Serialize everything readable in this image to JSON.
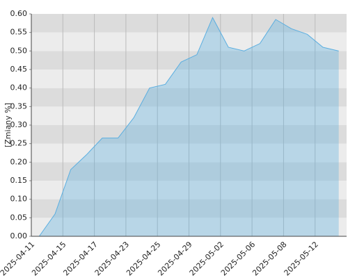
{
  "chart_data": {
    "type": "area",
    "ylabel": "[Zmiany %]",
    "categories": [
      "2025-04-11",
      null,
      "2025-04-15",
      null,
      "2025-04-17",
      null,
      "2025-04-23",
      null,
      "2025-04-25",
      null,
      "2025-04-29",
      null,
      "2025-05-02",
      null,
      "2025-05-06",
      null,
      "2025-05-08",
      null,
      "2025-05-12",
      null
    ],
    "values": [
      0,
      0.06,
      0.18,
      0.22,
      0.265,
      0.265,
      0.32,
      0.4,
      0.41,
      0.47,
      0.49,
      0.59,
      0.51,
      0.5,
      0.52,
      0.585,
      0.56,
      0.545,
      0.51,
      0.5
    ],
    "color": "#5aaee0",
    "ylim": [
      0,
      0.6
    ],
    "yticks": [
      {
        "value": 0,
        "label": "0.00"
      },
      {
        "value": 0.05,
        "label": "0.05"
      },
      {
        "value": 0.1,
        "label": "0.10"
      },
      {
        "value": 0.15,
        "label": "0.15"
      },
      {
        "value": 0.2,
        "label": "0.20"
      },
      {
        "value": 0.25,
        "label": "0.25"
      },
      {
        "value": 0.3,
        "label": "0.30"
      },
      {
        "value": 0.35,
        "label": "0.35"
      },
      {
        "value": 0.4,
        "label": "0.40"
      },
      {
        "value": 0.45,
        "label": "0.45"
      },
      {
        "value": 0.5,
        "label": "0.50"
      },
      {
        "value": 0.55,
        "label": "0.55"
      },
      {
        "value": 0.6,
        "label": "0.60"
      }
    ],
    "grid": true
  }
}
